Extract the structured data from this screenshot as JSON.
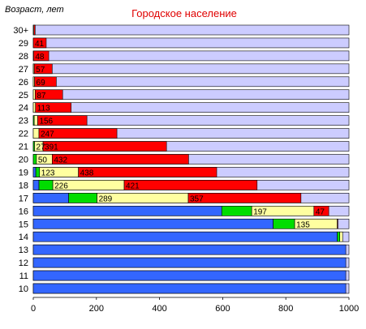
{
  "chart_data": {
    "type": "bar",
    "orientation": "horizontal",
    "stacked": true,
    "title": "Городское население",
    "ylabel": "Возраст, лет",
    "xlabel": "",
    "xlim": [
      0,
      1000
    ],
    "xticks": [
      "0",
      "200",
      "400",
      "600",
      "800",
      "1000"
    ],
    "grid": false,
    "legend": "none",
    "categories": [
      "30+",
      "29",
      "28",
      "27",
      "26",
      "25",
      "24",
      "23",
      "22",
      "21",
      "20",
      "19",
      "18",
      "17",
      "16",
      "15",
      "14",
      "13",
      "12",
      "11",
      "10"
    ],
    "series": [
      {
        "color": "#3366ff",
        "values": [
          0,
          0,
          0,
          0,
          0,
          0,
          0,
          0,
          0,
          0,
          0,
          8,
          18,
          112,
          597,
          760,
          963,
          990,
          990,
          990,
          990
        ]
      },
      {
        "color": "#00dd00",
        "values": [
          0,
          0,
          0,
          0,
          0,
          0,
          0,
          3,
          0,
          4,
          10,
          12,
          44,
          90,
          95,
          68,
          8,
          0,
          0,
          0,
          0
        ]
      },
      {
        "color": "#ffffa0",
        "values": [
          2,
          0,
          1,
          3,
          4,
          6,
          7,
          11,
          18,
          27,
          50,
          123,
          226,
          289,
          197,
          135,
          9,
          0,
          0,
          0,
          0
        ]
      },
      {
        "color": "#ff0000",
        "values": [
          4,
          41,
          48,
          57,
          69,
          87,
          113,
          156,
          247,
          391,
          432,
          438,
          421,
          357,
          47,
          2,
          0,
          0,
          0,
          0,
          0
        ]
      }
    ],
    "data_labels": [
      {
        "category": "29",
        "series": 3,
        "text": "41"
      },
      {
        "category": "28",
        "series": 3,
        "text": "48"
      },
      {
        "category": "27",
        "series": 3,
        "text": "57"
      },
      {
        "category": "26",
        "series": 3,
        "text": "69"
      },
      {
        "category": "25",
        "series": 3,
        "text": "87"
      },
      {
        "category": "24",
        "series": 3,
        "text": "113"
      },
      {
        "category": "23",
        "series": 3,
        "text": "156"
      },
      {
        "category": "22",
        "series": 3,
        "text": "247"
      },
      {
        "category": "21",
        "series": 2,
        "text": "27"
      },
      {
        "category": "21",
        "series": 3,
        "text": "391"
      },
      {
        "category": "20",
        "series": 2,
        "text": "50"
      },
      {
        "category": "20",
        "series": 3,
        "text": "432"
      },
      {
        "category": "19",
        "series": 2,
        "text": "123"
      },
      {
        "category": "19",
        "series": 3,
        "text": "438"
      },
      {
        "category": "18",
        "series": 2,
        "text": "226"
      },
      {
        "category": "18",
        "series": 3,
        "text": "421"
      },
      {
        "category": "17",
        "series": 2,
        "text": "289"
      },
      {
        "category": "17",
        "series": 3,
        "text": "357"
      },
      {
        "category": "16",
        "series": 2,
        "text": "197"
      },
      {
        "category": "16",
        "series": 3,
        "text": "47"
      },
      {
        "category": "15",
        "series": 2,
        "text": "135"
      }
    ],
    "colors": {
      "background_bar": "#ccccff",
      "bar_border": "#000000"
    }
  }
}
